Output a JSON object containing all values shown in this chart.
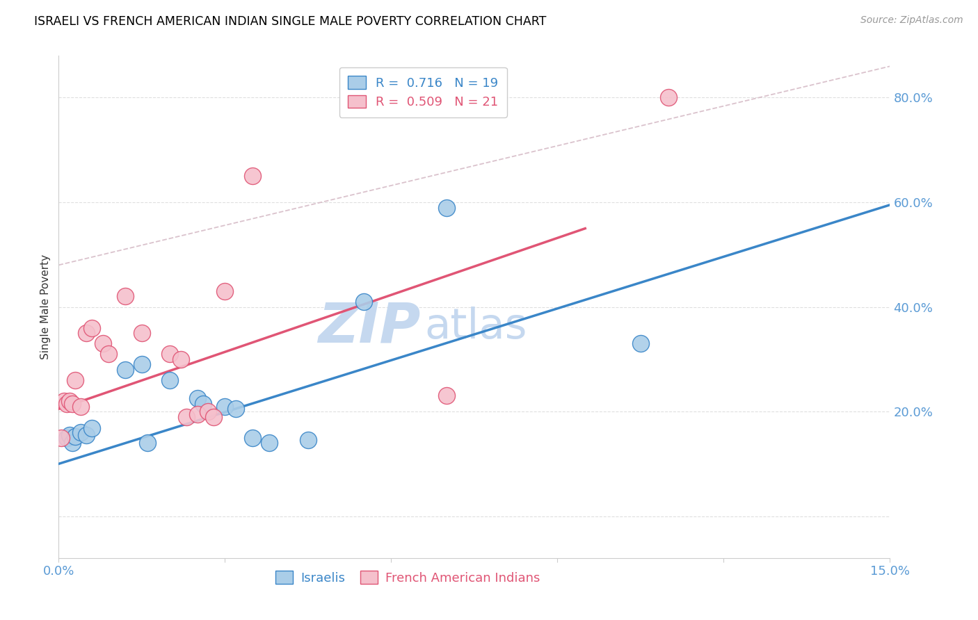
{
  "title": "ISRAELI VS FRENCH AMERICAN INDIAN SINGLE MALE POVERTY CORRELATION CHART",
  "source": "Source: ZipAtlas.com",
  "ylabel": "Single Male Poverty",
  "x_lim": [
    0.0,
    15.0
  ],
  "y_lim": [
    -8.0,
    88.0
  ],
  "x_ticks_pos": [
    0,
    3,
    6,
    9,
    12,
    15
  ],
  "x_tick_labels": [
    "0.0%",
    "",
    "",
    "",
    "",
    "15.0%"
  ],
  "y_ticks_pos": [
    0,
    20,
    40,
    60,
    80
  ],
  "y_tick_labels": [
    "",
    "20.0%",
    "40.0%",
    "60.0%",
    "80.0%"
  ],
  "blue_scatter": [
    [
      0.15,
      15.0
    ],
    [
      0.2,
      15.5
    ],
    [
      0.25,
      14.0
    ],
    [
      0.3,
      15.2
    ],
    [
      0.4,
      16.0
    ],
    [
      0.5,
      15.5
    ],
    [
      0.6,
      16.8
    ],
    [
      1.2,
      28.0
    ],
    [
      1.5,
      29.0
    ],
    [
      1.6,
      14.0
    ],
    [
      2.0,
      26.0
    ],
    [
      2.5,
      22.5
    ],
    [
      2.6,
      21.5
    ],
    [
      3.0,
      21.0
    ],
    [
      3.2,
      20.5
    ],
    [
      3.5,
      15.0
    ],
    [
      3.8,
      14.0
    ],
    [
      4.5,
      14.5
    ],
    [
      5.5,
      41.0
    ],
    [
      7.0,
      59.0
    ],
    [
      10.5,
      33.0
    ]
  ],
  "pink_scatter": [
    [
      0.05,
      15.0
    ],
    [
      0.1,
      22.0
    ],
    [
      0.15,
      21.5
    ],
    [
      0.2,
      22.0
    ],
    [
      0.25,
      21.5
    ],
    [
      0.3,
      26.0
    ],
    [
      0.4,
      21.0
    ],
    [
      0.5,
      35.0
    ],
    [
      0.6,
      36.0
    ],
    [
      0.8,
      33.0
    ],
    [
      0.9,
      31.0
    ],
    [
      1.2,
      42.0
    ],
    [
      1.5,
      35.0
    ],
    [
      2.0,
      31.0
    ],
    [
      2.2,
      30.0
    ],
    [
      2.3,
      19.0
    ],
    [
      2.5,
      19.5
    ],
    [
      2.7,
      20.0
    ],
    [
      2.8,
      19.0
    ],
    [
      3.0,
      43.0
    ],
    [
      3.5,
      65.0
    ],
    [
      7.0,
      23.0
    ],
    [
      11.0,
      80.0
    ]
  ],
  "blue_line_x": [
    0.0,
    15.0
  ],
  "blue_line_y": [
    10.0,
    59.5
  ],
  "pink_line_x": [
    0.0,
    9.5
  ],
  "pink_line_y": [
    20.5,
    55.0
  ],
  "dashed_line_x": [
    0.0,
    15.0
  ],
  "dashed_line_y": [
    48.0,
    86.0
  ],
  "blue_color": "#3a86c8",
  "pink_color": "#e05575",
  "blue_scatter_color": "#aacde8",
  "pink_scatter_color": "#f5c0cc",
  "dashed_color": "#d4b8c4",
  "grid_color": "#d8d8d8",
  "tick_color": "#5b9bd5",
  "background_color": "#ffffff",
  "watermark_zip": "ZIP",
  "watermark_atlas": "atlas",
  "watermark_color": "#c5d8ef",
  "legend_labels_bottom": [
    "Israelis",
    "French American Indians"
  ]
}
